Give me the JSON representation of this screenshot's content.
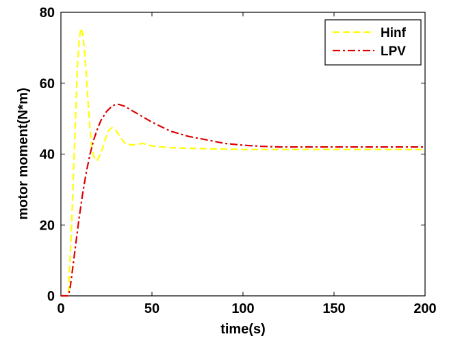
{
  "chart_data": {
    "type": "line",
    "title": "",
    "xlabel": "time(s)",
    "ylabel": "motor moment(N*m)",
    "xlim": [
      0,
      200
    ],
    "ylim": [
      0,
      80
    ],
    "xticks": [
      0,
      50,
      100,
      150,
      200
    ],
    "yticks": [
      0,
      20,
      40,
      60,
      80
    ],
    "grid": false,
    "legend_position": "top-right",
    "series": [
      {
        "name": "Hinf",
        "color": "#ffff00",
        "line_style": "dashed",
        "x": [
          0,
          4,
          5,
          6,
          7,
          8,
          9,
          10,
          11,
          12,
          13,
          14,
          15,
          16,
          17,
          18,
          19,
          20,
          22,
          24,
          26,
          28,
          30,
          32,
          34,
          36,
          40,
          45,
          50,
          60,
          80,
          100,
          150,
          200
        ],
        "y": [
          0,
          0,
          10,
          22,
          36,
          50,
          64,
          72,
          75.5,
          74,
          69,
          62,
          54,
          47,
          42,
          39.5,
          38.3,
          38.2,
          40.3,
          43.5,
          46.5,
          47.5,
          46.8,
          45.3,
          43.8,
          42.7,
          42.6,
          43,
          42.3,
          41.8,
          41.5,
          41.3,
          41.3,
          41.3
        ]
      },
      {
        "name": "LPV",
        "color": "#dd0000",
        "line_style": "dashdot",
        "x": [
          0,
          4,
          5,
          6,
          8,
          10,
          12,
          14,
          16,
          18,
          20,
          22,
          25,
          28,
          30,
          32,
          35,
          40,
          45,
          50,
          60,
          70,
          80,
          90,
          100,
          110,
          120,
          150,
          200
        ],
        "y": [
          0,
          0,
          2,
          6,
          14,
          22,
          29,
          35,
          40,
          44,
          47,
          49.5,
          52,
          53.5,
          54,
          54,
          53.5,
          52,
          50.5,
          49,
          46.5,
          45,
          44,
          43,
          42.5,
          42.2,
          42,
          42,
          42
        ]
      }
    ]
  }
}
